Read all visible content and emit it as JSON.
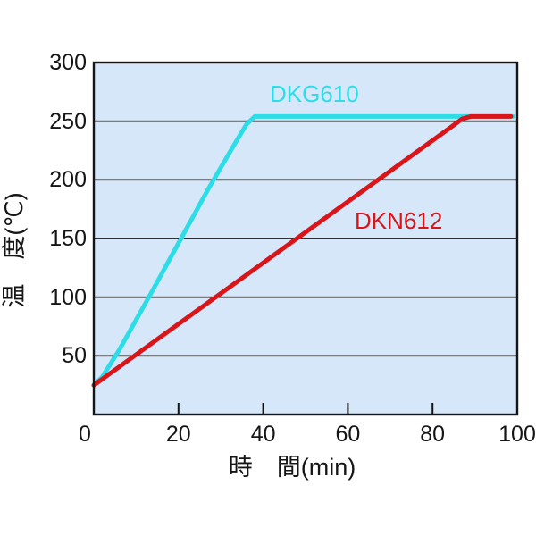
{
  "chart_data": {
    "type": "line",
    "title": "",
    "xlabel": "時　間(min)",
    "ylabel": "温　度(℃)",
    "xlim": [
      0,
      100
    ],
    "ylim": [
      0,
      300
    ],
    "grid": "horizontal-only",
    "legend_position": "inline-labels",
    "x_tick_labels": [
      "0",
      "20",
      "40",
      "60",
      "80",
      "100"
    ],
    "x_tick_values": [
      0,
      20,
      40,
      60,
      80,
      100
    ],
    "x_tick_marks": [
      20,
      40,
      60,
      80
    ],
    "y_tick_labels": [
      "300",
      "250",
      "200",
      "150",
      "100",
      "50"
    ],
    "y_tick_values": [
      300,
      250,
      200,
      150,
      100,
      50
    ],
    "y_gridline_values": [
      250,
      200,
      150,
      100,
      50
    ],
    "series": [
      {
        "name": "DKG610",
        "color": "#2cdde8",
        "points": [
          [
            0,
            25
          ],
          [
            2,
            32
          ],
          [
            6,
            55
          ],
          [
            13,
            100
          ],
          [
            20,
            146
          ],
          [
            27,
            192
          ],
          [
            33,
            229
          ],
          [
            36,
            247
          ],
          [
            38,
            254
          ],
          [
            99,
            254
          ]
        ]
      },
      {
        "name": "DKN612",
        "color": "#d9151a",
        "points": [
          [
            0,
            25
          ],
          [
            84,
            244
          ],
          [
            87,
            252
          ],
          [
            89,
            254
          ],
          [
            98.5,
            254
          ]
        ]
      }
    ],
    "colors": {
      "plot_background": "#d5e7f9",
      "axis": "#151515",
      "gridline": "#151515",
      "text": "#151515"
    }
  }
}
